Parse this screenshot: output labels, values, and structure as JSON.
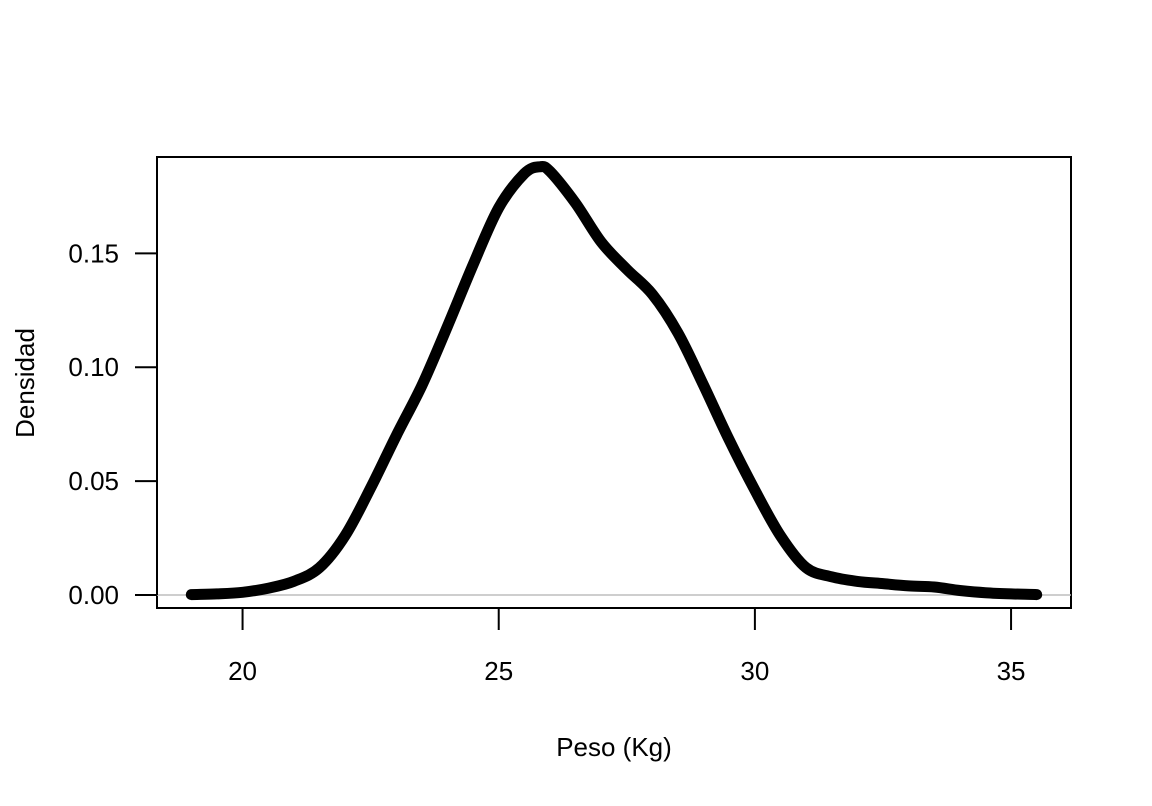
{
  "chart_data": {
    "type": "line",
    "xlabel": "Peso (Kg)",
    "ylabel": "Densidad",
    "xlim": [
      18.33,
      36.17
    ],
    "ylim": [
      -0.0057,
      0.1923
    ],
    "x_ticks": [
      20,
      25,
      30,
      35
    ],
    "y_ticks": [
      0.0,
      0.05,
      0.1,
      0.15
    ],
    "x_tick_labels": [
      "20",
      "25",
      "30",
      "35"
    ],
    "y_tick_labels": [
      "0.00",
      "0.05",
      "0.10",
      "0.15"
    ],
    "zero_line": true,
    "grid": false,
    "series": [
      {
        "x": [
          19.0,
          19.5,
          20.0,
          20.5,
          21.0,
          21.5,
          22.0,
          22.5,
          23.0,
          23.5,
          24.0,
          24.5,
          25.0,
          25.5,
          25.8,
          26.0,
          26.5,
          27.0,
          27.5,
          28.0,
          28.5,
          29.0,
          29.5,
          30.0,
          30.5,
          31.0,
          31.5,
          32.0,
          32.5,
          33.0,
          33.5,
          34.0,
          34.5,
          35.0,
          35.5
        ],
        "y": [
          0.0002,
          0.0005,
          0.0012,
          0.003,
          0.006,
          0.012,
          0.026,
          0.047,
          0.07,
          0.092,
          0.118,
          0.145,
          0.17,
          0.185,
          0.188,
          0.186,
          0.172,
          0.155,
          0.143,
          0.132,
          0.115,
          0.092,
          0.068,
          0.046,
          0.026,
          0.012,
          0.008,
          0.006,
          0.005,
          0.004,
          0.0035,
          0.002,
          0.001,
          0.0005,
          0.0002
        ]
      }
    ]
  }
}
